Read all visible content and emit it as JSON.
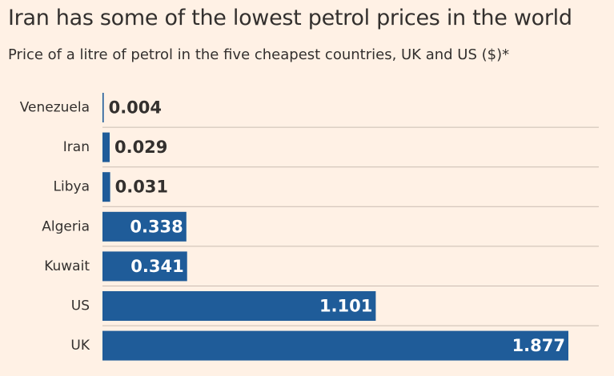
{
  "title": "Iran has some of the lowest petrol prices in the world",
  "subtitle": "Price of a litre of petrol in the five cheapest countries, UK and US ($)*",
  "colors": {
    "background": "#fff1e5",
    "bar": "#1f5c99",
    "text": "#33302e",
    "rule": "#c9bcb1"
  },
  "chart_data": {
    "type": "bar",
    "orientation": "horizontal",
    "categories": [
      "Venezuela",
      "Iran",
      "Libya",
      "Algeria",
      "Kuwait",
      "US",
      "UK"
    ],
    "values": [
      0.004,
      0.029,
      0.031,
      0.338,
      0.341,
      1.101,
      1.877
    ],
    "value_labels": [
      "0.004",
      "0.029",
      "0.031",
      "0.338",
      "0.341",
      "1.101",
      "1.877"
    ],
    "title": "Iran has some of the lowest petrol prices in the world",
    "subtitle": "Price of a litre of petrol in the five cheapest countries, UK and US ($)*",
    "xlabel": "",
    "ylabel": "",
    "xlim": [
      0,
      1.877
    ],
    "grid": false,
    "legend": "none"
  }
}
